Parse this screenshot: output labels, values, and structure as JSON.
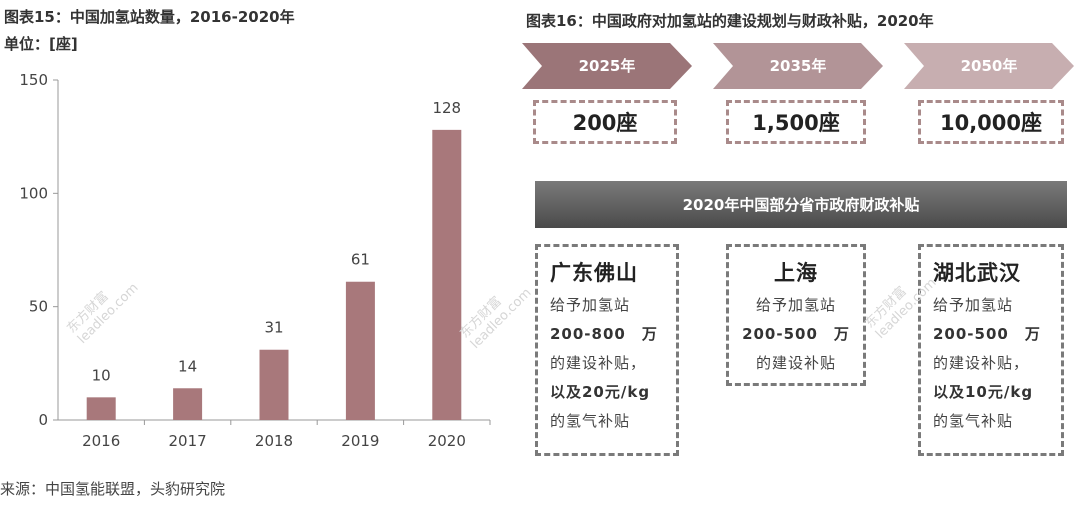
{
  "left": {
    "title": "图表15：中国加氢站数量，2016-2020年",
    "unit": "单位：[座]"
  },
  "right": {
    "title": "图表16：中国政府对加氢站的建设规划与财政补贴，2020年",
    "milestones": [
      {
        "year": "2025年",
        "target": "200座",
        "color": "#9b7578"
      },
      {
        "year": "2035年",
        "target": "1,500座",
        "color": "#b29497"
      },
      {
        "year": "2050年",
        "target": "10,000座",
        "color": "#c7aeb0"
      }
    ],
    "banner": "2020年中国部分省市政府财政补贴",
    "cities": [
      {
        "name": "广东佛山",
        "l1": "给予加氢站",
        "l2": "200-800　万",
        "l3": "的建设补贴，",
        "l4": "以及20元/kg",
        "l5": "的氢气补贴"
      },
      {
        "name": "上海",
        "l1": "给予加氢站",
        "l2": "200-500　万",
        "l3": "的建设补贴",
        "l4": "",
        "l5": ""
      },
      {
        "name": "湖北武汉",
        "l1": "给予加氢站",
        "l2": "200-500　万",
        "l3": "的建设补贴，",
        "l4": "以及10元/kg",
        "l5": "的氢气补贴"
      }
    ]
  },
  "source": "来源：中国氢能联盟，头豹研究院",
  "watermark": {
    "line1": "东方财富",
    "line2": "leadleo.com"
  },
  "chart_data": {
    "type": "bar",
    "title": "图表15：中国加氢站数量，2016-2020年",
    "ylabel": "单位：[座]",
    "categories": [
      "2016",
      "2017",
      "2018",
      "2019",
      "2020"
    ],
    "values": [
      10,
      14,
      31,
      61,
      128
    ],
    "ylim": [
      0,
      150
    ],
    "yticks": [
      0,
      50,
      100,
      150
    ],
    "bar_color": "#a8787b",
    "grid": false
  }
}
